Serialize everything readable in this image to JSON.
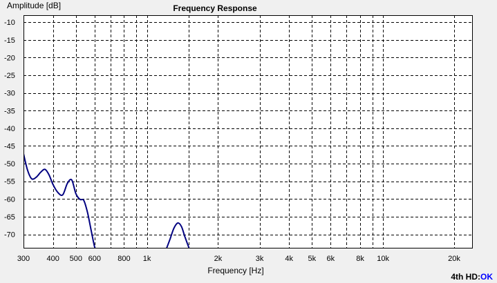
{
  "colors": {
    "background": "#f0f0f0",
    "plot_background": "#ffffff",
    "grid": "#000000",
    "curve": "#000080",
    "status_label": "#000000",
    "status_value": "#0000ff"
  },
  "status": {
    "label": "4th HD:",
    "value": "OK"
  },
  "chart_data": {
    "type": "line",
    "title": "Frequency Response",
    "xlabel": "Frequency [Hz]",
    "ylabel": "Amplitude [dB]",
    "x_scale": "log",
    "xlim": [
      300,
      24000
    ],
    "ylim": [
      -74,
      -8
    ],
    "grid": true,
    "legend": "none",
    "x_ticks": [
      {
        "value": 300,
        "label": "300"
      },
      {
        "value": 400,
        "label": "400"
      },
      {
        "value": 500,
        "label": "500"
      },
      {
        "value": 600,
        "label": "600"
      },
      {
        "value": 800,
        "label": "800"
      },
      {
        "value": 1000,
        "label": "1k"
      },
      {
        "value": 2000,
        "label": "2k"
      },
      {
        "value": 3000,
        "label": "3k"
      },
      {
        "value": 4000,
        "label": "4k"
      },
      {
        "value": 5000,
        "label": "5k"
      },
      {
        "value": 6000,
        "label": "6k"
      },
      {
        "value": 8000,
        "label": "8k"
      },
      {
        "value": 10000,
        "label": "10k"
      },
      {
        "value": 20000,
        "label": "20k"
      }
    ],
    "x_minor_grid": [
      700,
      900,
      1500,
      7000,
      9000
    ],
    "y_ticks": [
      {
        "value": -10,
        "label": "-10"
      },
      {
        "value": -15,
        "label": "-15"
      },
      {
        "value": -20,
        "label": "-20"
      },
      {
        "value": -25,
        "label": "-25"
      },
      {
        "value": -30,
        "label": "-30"
      },
      {
        "value": -35,
        "label": "-35"
      },
      {
        "value": -40,
        "label": "-40"
      },
      {
        "value": -45,
        "label": "-45"
      },
      {
        "value": -50,
        "label": "-50"
      },
      {
        "value": -55,
        "label": "-55"
      },
      {
        "value": -60,
        "label": "-60"
      },
      {
        "value": -65,
        "label": "-65"
      },
      {
        "value": -70,
        "label": "-70"
      }
    ],
    "series": [
      {
        "segments": [
          {
            "x": [
              300,
              312,
              325,
              340,
              355,
              370,
              385,
              400,
              420,
              440,
              460,
              480,
              500,
              520,
              540,
              560,
              580,
              600,
              610
            ],
            "y": [
              -47.2,
              -51.8,
              -54.3,
              -53.8,
              -52.4,
              -51.6,
              -53.2,
              -55.9,
              -58.2,
              -58.8,
              -55.6,
              -54.6,
              -58.5,
              -60.1,
              -60.4,
              -63.8,
              -68.8,
              -73.5,
              -74.0
            ]
          },
          {
            "x": [
              1210,
              1250,
              1300,
              1350,
              1400,
              1450,
              1510
            ],
            "y": [
              -74.0,
              -71.5,
              -68.3,
              -66.8,
              -67.8,
              -70.8,
              -74.0
            ]
          }
        ]
      }
    ]
  }
}
